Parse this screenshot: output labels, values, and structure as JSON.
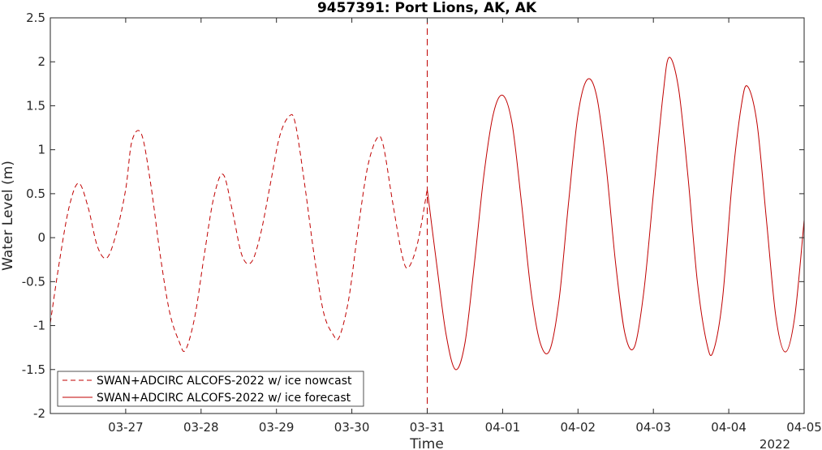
{
  "chart_data": {
    "type": "line",
    "title": "9457391: Port Lions, AK, AK",
    "xlabel": "Time",
    "ylabel": "Water Level (m)",
    "x_year_label": "2022",
    "x_ticks": [
      "03-27",
      "03-28",
      "03-29",
      "03-30",
      "03-31",
      "04-01",
      "04-02",
      "04-03",
      "04-04",
      "04-05"
    ],
    "xlim": [
      "2022-03-26 00:00",
      "2022-04-05 00:00"
    ],
    "ylim": [
      -2,
      2.5
    ],
    "y_ticks": [
      "-2",
      "-1.5",
      "-1",
      "-0.5",
      "0",
      "0.5",
      "1",
      "1.5",
      "2",
      "2.5"
    ],
    "y_tick_values": [
      -2,
      -1.5,
      -1,
      -0.5,
      0,
      0.5,
      1,
      1.5,
      2,
      2.5
    ],
    "grid": false,
    "legend_position": "bottom-left",
    "divider_time": "2022-03-31 00:00",
    "colors": {
      "series": "#c00000",
      "axis": "#262626"
    },
    "series": [
      {
        "name": "SWAN+ADCIRC ALCOFS-2022 w/ ice nowcast",
        "style": "dashed",
        "points": [
          [
            "2022-03-26 00:00",
            -0.97
          ],
          [
            "2022-03-26 03:00",
            -0.25
          ],
          [
            "2022-03-26 06:00",
            0.35
          ],
          [
            "2022-03-26 09:00",
            0.62
          ],
          [
            "2022-03-26 12:00",
            0.35
          ],
          [
            "2022-03-26 15:00",
            -0.1
          ],
          [
            "2022-03-26 18:00",
            -0.23
          ],
          [
            "2022-03-26 21:00",
            0.05
          ],
          [
            "2022-03-27 00:00",
            0.55
          ],
          [
            "2022-03-27 02:00",
            1.1
          ],
          [
            "2022-03-27 05:00",
            1.18
          ],
          [
            "2022-03-27 08:00",
            0.6
          ],
          [
            "2022-03-27 11:00",
            -0.2
          ],
          [
            "2022-03-27 14:00",
            -0.85
          ],
          [
            "2022-03-27 17:00",
            -1.18
          ],
          [
            "2022-03-27 19:00",
            -1.28
          ],
          [
            "2022-03-27 22:00",
            -0.9
          ],
          [
            "2022-03-28 01:00",
            -0.2
          ],
          [
            "2022-03-28 04:00",
            0.45
          ],
          [
            "2022-03-28 07:00",
            0.72
          ],
          [
            "2022-03-28 10:00",
            0.3
          ],
          [
            "2022-03-28 13:00",
            -0.2
          ],
          [
            "2022-03-28 16:00",
            -0.28
          ],
          [
            "2022-03-28 19:00",
            0.05
          ],
          [
            "2022-03-28 22:00",
            0.6
          ],
          [
            "2022-03-29 01:00",
            1.15
          ],
          [
            "2022-03-29 04:00",
            1.38
          ],
          [
            "2022-03-29 06:00",
            1.3
          ],
          [
            "2022-03-29 09:00",
            0.6
          ],
          [
            "2022-03-29 12:00",
            -0.2
          ],
          [
            "2022-03-29 15:00",
            -0.85
          ],
          [
            "2022-03-29 18:00",
            -1.1
          ],
          [
            "2022-03-29 20:00",
            -1.13
          ],
          [
            "2022-03-29 23:00",
            -0.7
          ],
          [
            "2022-03-30 02:00",
            0.1
          ],
          [
            "2022-03-30 05:00",
            0.8
          ],
          [
            "2022-03-30 08:00",
            1.13
          ],
          [
            "2022-03-30 10:00",
            1.05
          ],
          [
            "2022-03-30 13:00",
            0.4
          ],
          [
            "2022-03-30 16:00",
            -0.2
          ],
          [
            "2022-03-30 18:00",
            -0.34
          ],
          [
            "2022-03-30 21:00",
            -0.05
          ],
          [
            "2022-03-31 00:00",
            0.55
          ]
        ]
      },
      {
        "name": "SWAN+ADCIRC ALCOFS-2022 w/ ice forecast",
        "style": "solid",
        "points": [
          [
            "2022-03-31 00:00",
            0.55
          ],
          [
            "2022-03-31 03:00",
            -0.3
          ],
          [
            "2022-03-31 06:00",
            -1.1
          ],
          [
            "2022-03-31 09:00",
            -1.5
          ],
          [
            "2022-03-31 12:00",
            -1.2
          ],
          [
            "2022-03-31 15:00",
            -0.3
          ],
          [
            "2022-03-31 18:00",
            0.7
          ],
          [
            "2022-03-31 21:00",
            1.4
          ],
          [
            "2022-04-01 00:00",
            1.62
          ],
          [
            "2022-04-01 03:00",
            1.3
          ],
          [
            "2022-04-01 06:00",
            0.4
          ],
          [
            "2022-04-01 09:00",
            -0.6
          ],
          [
            "2022-04-01 12:00",
            -1.2
          ],
          [
            "2022-04-01 15:00",
            -1.28
          ],
          [
            "2022-04-01 18:00",
            -0.7
          ],
          [
            "2022-04-01 21:00",
            0.4
          ],
          [
            "2022-04-02 00:00",
            1.4
          ],
          [
            "2022-04-02 03:00",
            1.8
          ],
          [
            "2022-04-02 06:00",
            1.6
          ],
          [
            "2022-04-02 09:00",
            0.8
          ],
          [
            "2022-04-02 12:00",
            -0.3
          ],
          [
            "2022-04-02 15:00",
            -1.1
          ],
          [
            "2022-04-02 18:00",
            -1.24
          ],
          [
            "2022-04-02 21:00",
            -0.6
          ],
          [
            "2022-04-03 00:00",
            0.5
          ],
          [
            "2022-04-03 03:00",
            1.6
          ],
          [
            "2022-04-03 05:00",
            2.05
          ],
          [
            "2022-04-03 08:00",
            1.7
          ],
          [
            "2022-04-03 11:00",
            0.7
          ],
          [
            "2022-04-03 14:00",
            -0.5
          ],
          [
            "2022-04-03 17:00",
            -1.2
          ],
          [
            "2022-04-03 19:00",
            -1.3
          ],
          [
            "2022-04-03 22:00",
            -0.7
          ],
          [
            "2022-04-04 01:00",
            0.6
          ],
          [
            "2022-04-04 04:00",
            1.5
          ],
          [
            "2022-04-04 06:00",
            1.72
          ],
          [
            "2022-04-04 09:00",
            1.3
          ],
          [
            "2022-04-04 12:00",
            0.2
          ],
          [
            "2022-04-04 15:00",
            -0.9
          ],
          [
            "2022-04-04 18:00",
            -1.3
          ],
          [
            "2022-04-04 21:00",
            -0.9
          ],
          [
            "2022-04-05 00:00",
            0.2
          ]
        ]
      }
    ]
  }
}
